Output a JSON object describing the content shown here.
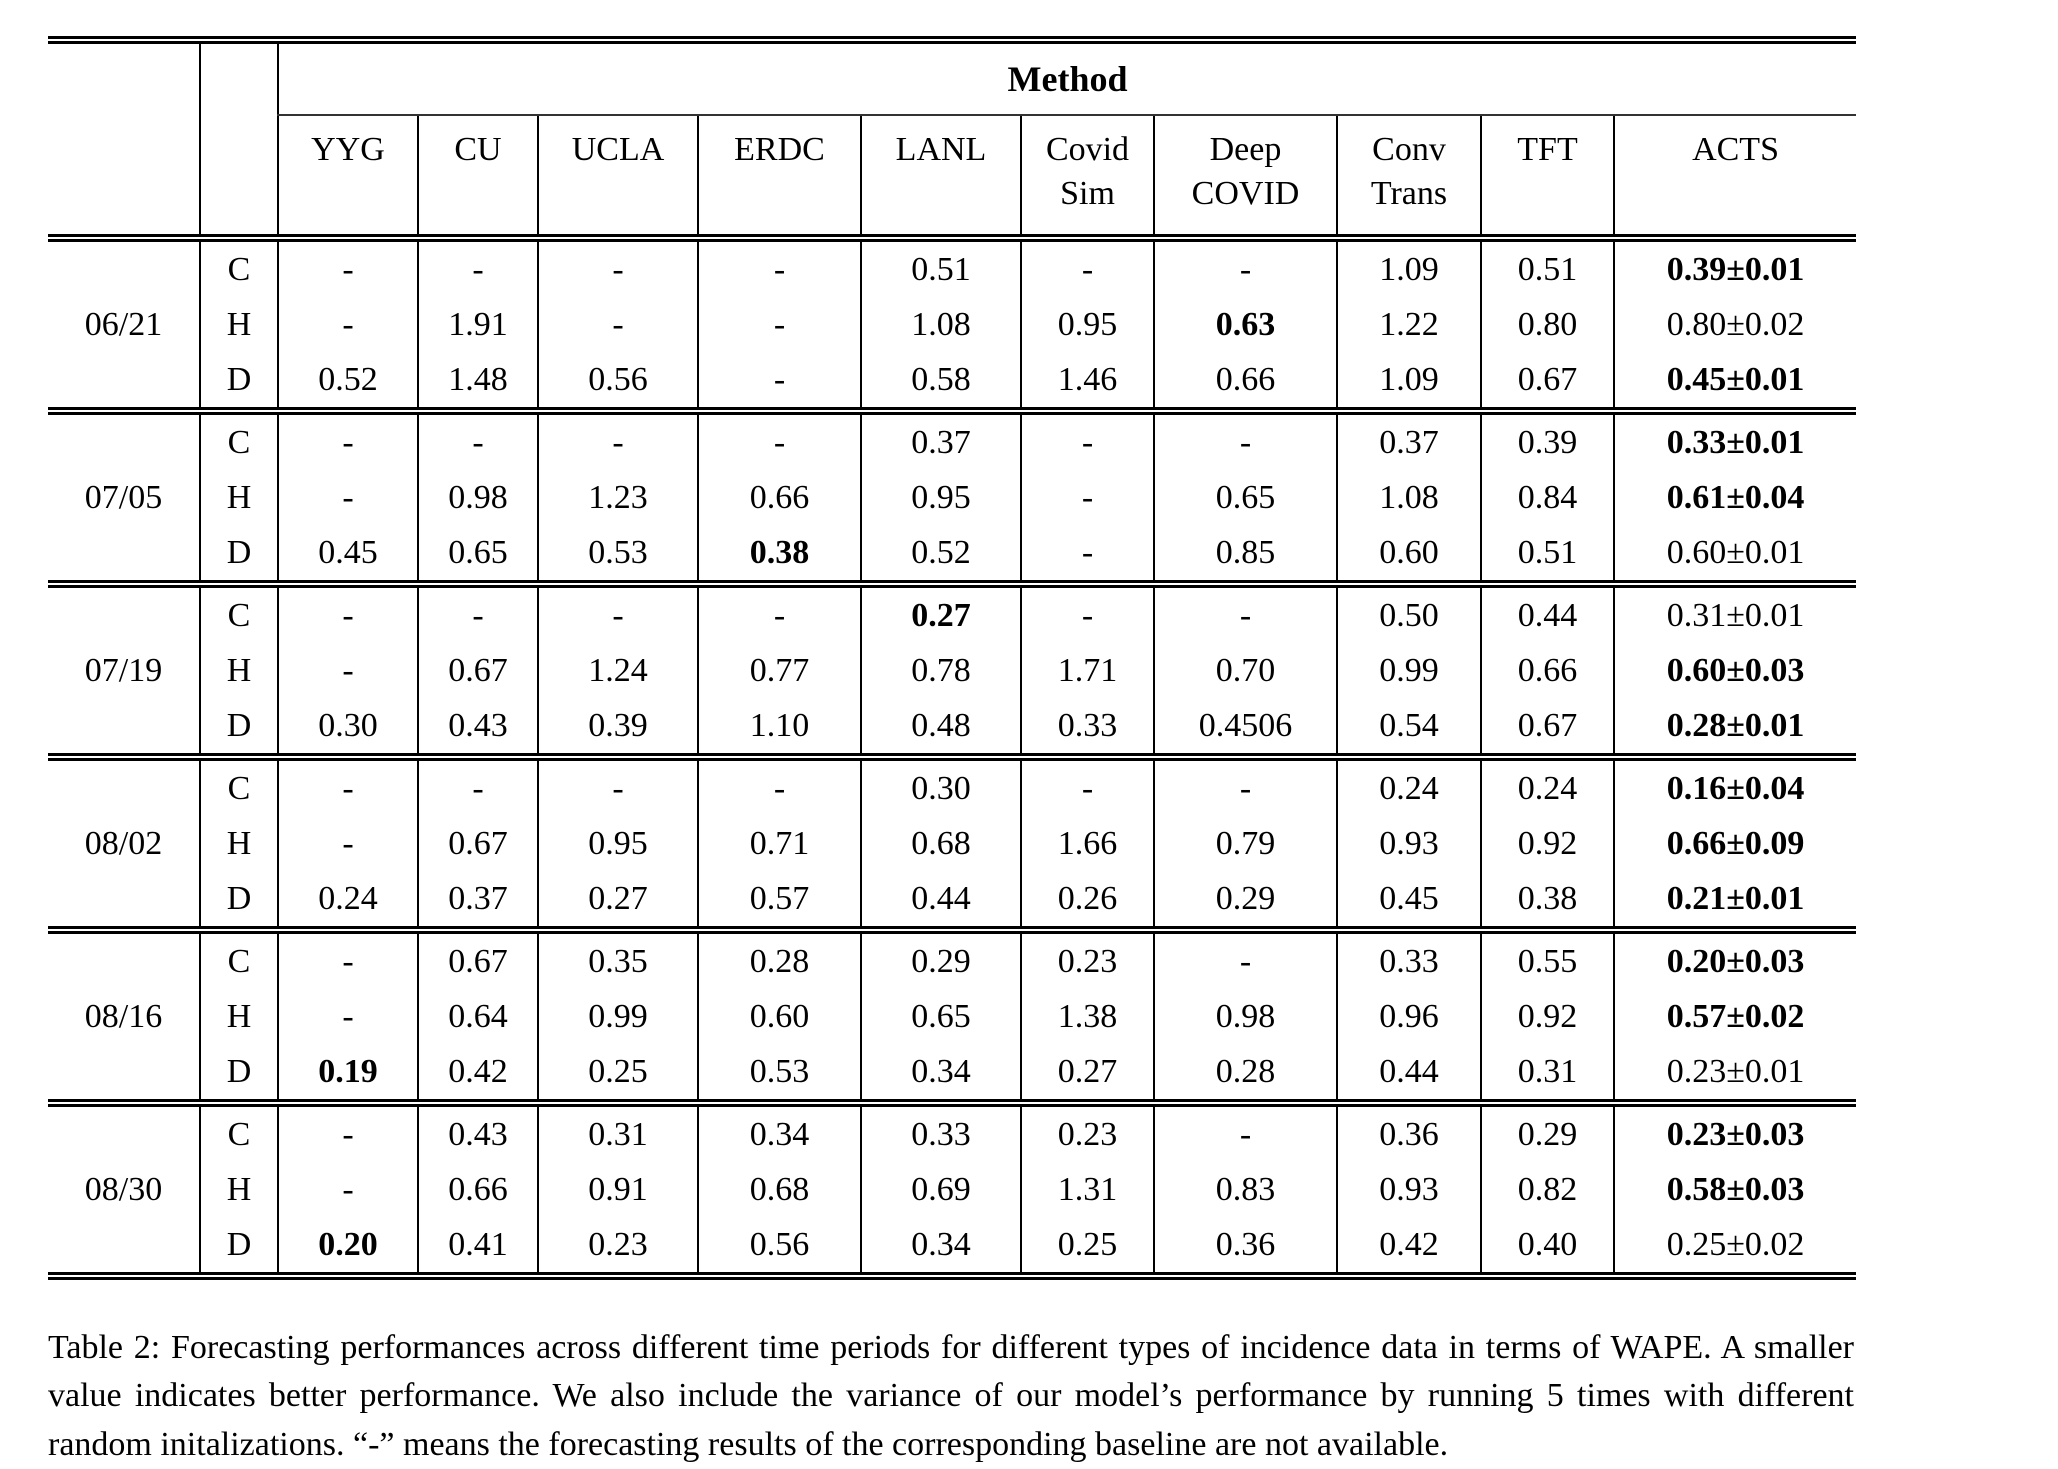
{
  "table": {
    "method_header": "Method",
    "columns": [
      "YYG",
      "CU",
      "UCLA",
      "ERDC",
      "LANL",
      "Covid\nSim",
      "Deep\nCOVID",
      "Conv\nTrans",
      "TFT",
      "ACTS"
    ],
    "groups": [
      {
        "date": "06/21",
        "rows": [
          {
            "label": "C",
            "cells": [
              "-",
              "-",
              "-",
              "-",
              "0.51",
              "-",
              "-",
              "1.09",
              "0.51",
              {
                "t": "0.39±0.01",
                "b": true
              }
            ]
          },
          {
            "label": "H",
            "cells": [
              "-",
              "1.91",
              "-",
              "-",
              "1.08",
              "0.95",
              {
                "t": "0.63",
                "b": true
              },
              "1.22",
              "0.80",
              "0.80±0.02"
            ]
          },
          {
            "label": "D",
            "cells": [
              "0.52",
              "1.48",
              "0.56",
              "-",
              "0.58",
              "1.46",
              "0.66",
              "1.09",
              "0.67",
              {
                "t": "0.45±0.01",
                "b": true
              }
            ]
          }
        ]
      },
      {
        "date": "07/05",
        "rows": [
          {
            "label": "C",
            "cells": [
              "-",
              "-",
              "-",
              "-",
              "0.37",
              "-",
              "-",
              "0.37",
              "0.39",
              {
                "t": "0.33±0.01",
                "b": true
              }
            ]
          },
          {
            "label": "H",
            "cells": [
              "-",
              "0.98",
              "1.23",
              "0.66",
              "0.95",
              "-",
              "0.65",
              "1.08",
              "0.84",
              {
                "t": "0.61±0.04",
                "b": true
              }
            ]
          },
          {
            "label": "D",
            "cells": [
              "0.45",
              "0.65",
              "0.53",
              {
                "t": "0.38",
                "b": true
              },
              "0.52",
              "-",
              "0.85",
              "0.60",
              "0.51",
              "0.60±0.01"
            ]
          }
        ]
      },
      {
        "date": "07/19",
        "rows": [
          {
            "label": "C",
            "cells": [
              "-",
              "-",
              "-",
              "-",
              {
                "t": "0.27",
                "b": true
              },
              "-",
              "-",
              "0.50",
              "0.44",
              "0.31±0.01"
            ]
          },
          {
            "label": "H",
            "cells": [
              "-",
              "0.67",
              "1.24",
              "0.77",
              "0.78",
              "1.71",
              "0.70",
              "0.99",
              "0.66",
              {
                "t": "0.60±0.03",
                "b": true
              }
            ]
          },
          {
            "label": "D",
            "cells": [
              "0.30",
              "0.43",
              "0.39",
              "1.10",
              "0.48",
              "0.33",
              "0.4506",
              "0.54",
              "0.67",
              {
                "t": "0.28±0.01",
                "b": true
              }
            ]
          }
        ]
      },
      {
        "date": "08/02",
        "rows": [
          {
            "label": "C",
            "cells": [
              "-",
              "-",
              "-",
              "-",
              "0.30",
              "-",
              "-",
              "0.24",
              "0.24",
              {
                "t": "0.16±0.04",
                "b": true
              }
            ]
          },
          {
            "label": "H",
            "cells": [
              "-",
              "0.67",
              "0.95",
              "0.71",
              "0.68",
              "1.66",
              "0.79",
              "0.93",
              "0.92",
              {
                "t": "0.66±0.09",
                "b": true
              }
            ]
          },
          {
            "label": "D",
            "cells": [
              "0.24",
              "0.37",
              "0.27",
              "0.57",
              "0.44",
              "0.26",
              "0.29",
              "0.45",
              "0.38",
              {
                "t": "0.21±0.01",
                "b": true
              }
            ]
          }
        ]
      },
      {
        "date": "08/16",
        "rows": [
          {
            "label": "C",
            "cells": [
              "-",
              "0.67",
              "0.35",
              "0.28",
              "0.29",
              "0.23",
              "-",
              "0.33",
              "0.55",
              {
                "t": "0.20±0.03",
                "b": true
              }
            ]
          },
          {
            "label": "H",
            "cells": [
              "-",
              "0.64",
              "0.99",
              "0.60",
              "0.65",
              "1.38",
              "0.98",
              "0.96",
              "0.92",
              {
                "t": "0.57±0.02",
                "b": true
              }
            ]
          },
          {
            "label": "D",
            "cells": [
              {
                "t": "0.19",
                "b": true
              },
              "0.42",
              "0.25",
              "0.53",
              "0.34",
              "0.27",
              "0.28",
              "0.44",
              "0.31",
              "0.23±0.01"
            ]
          }
        ]
      },
      {
        "date": "08/30",
        "rows": [
          {
            "label": "C",
            "cells": [
              "-",
              "0.43",
              "0.31",
              "0.34",
              "0.33",
              "0.23",
              "-",
              "0.36",
              "0.29",
              {
                "t": "0.23±0.03",
                "b": true
              }
            ]
          },
          {
            "label": "H",
            "cells": [
              "-",
              "0.66",
              "0.91",
              "0.68",
              "0.69",
              "1.31",
              "0.83",
              "0.93",
              "0.82",
              {
                "t": "0.58±0.03",
                "b": true
              }
            ]
          },
          {
            "label": "D",
            "cells": [
              {
                "t": "0.20",
                "b": true
              },
              "0.41",
              "0.23",
              "0.56",
              "0.34",
              "0.25",
              "0.36",
              "0.42",
              "0.40",
              "0.25±0.02"
            ]
          }
        ]
      }
    ]
  },
  "caption": "Table 2:  Forecasting performances across different time periods for different types of incidence data in terms of WAPE. A smaller value indicates better performance.  We also include the variance of our model’s performance by running 5 times with different random initalizations.  “-” means the forecasting results of the corresponding baseline are not available."
}
